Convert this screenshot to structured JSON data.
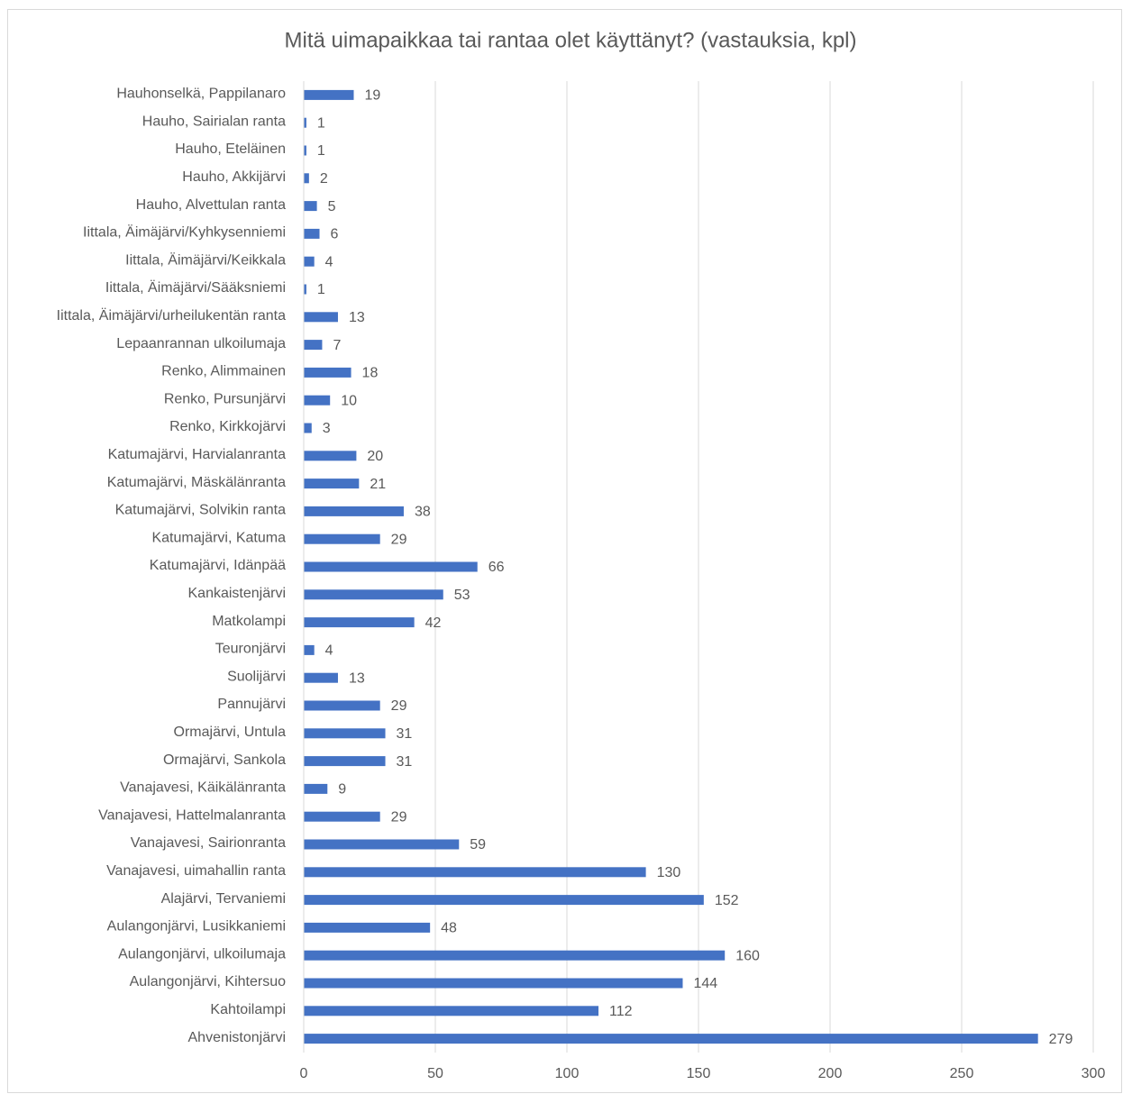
{
  "chart_data": {
    "type": "bar",
    "orientation": "horizontal",
    "title": "Mitä uimapaikkaa tai rantaa olet käyttänyt? (vastauksia, kpl)",
    "categories": [
      "Hauhonselkä, Pappilanaro",
      "Hauho, Sairialan ranta",
      "Hauho, Eteläinen",
      "Hauho, Akkijärvi",
      "Hauho, Alvettulan ranta",
      "Iittala, Äimäjärvi/Kyhkysenniemi",
      "Iittala, Äimäjärvi/Keikkala",
      "Iittala, Äimäjärvi/Sääksniemi",
      "Iittala, Äimäjärvi/urheilukentän ranta",
      "Lepaanrannan ulkoilumaja",
      "Renko, Alimmainen",
      "Renko, Pursunjärvi",
      "Renko, Kirkkojärvi",
      "Katumajärvi, Harvialanranta",
      "Katumajärvi, Mäskälänranta",
      "Katumajärvi, Solvikin ranta",
      "Katumajärvi, Katuma",
      "Katumajärvi, Idänpää",
      "Kankaistenjärvi",
      "Matkolampi",
      "Teuronjärvi",
      "Suolijärvi",
      "Pannujärvi",
      "Ormajärvi, Untula",
      "Ormajärvi, Sankola",
      "Vanajavesi, Käikälänranta",
      "Vanajavesi, Hattelmalanranta",
      "Vanajavesi, Sairionranta",
      "Vanajavesi, uimahallin ranta",
      "Alajärvi, Tervaniemi",
      "Aulangonjärvi, Lusikkaniemi",
      "Aulangonjärvi, ulkoilumaja",
      "Aulangonjärvi, Kihtersuo",
      "Kahtoilampi",
      "Ahvenistonjärvi"
    ],
    "values": [
      19,
      1,
      1,
      2,
      5,
      6,
      4,
      1,
      13,
      7,
      18,
      10,
      3,
      20,
      21,
      38,
      29,
      66,
      53,
      42,
      4,
      13,
      29,
      31,
      31,
      9,
      29,
      59,
      130,
      152,
      48,
      160,
      144,
      112,
      279
    ],
    "color": "#4472c4",
    "xlim": [
      0,
      300
    ],
    "xticks": [
      0,
      50,
      100,
      150,
      200,
      250,
      300
    ],
    "grid": true
  }
}
